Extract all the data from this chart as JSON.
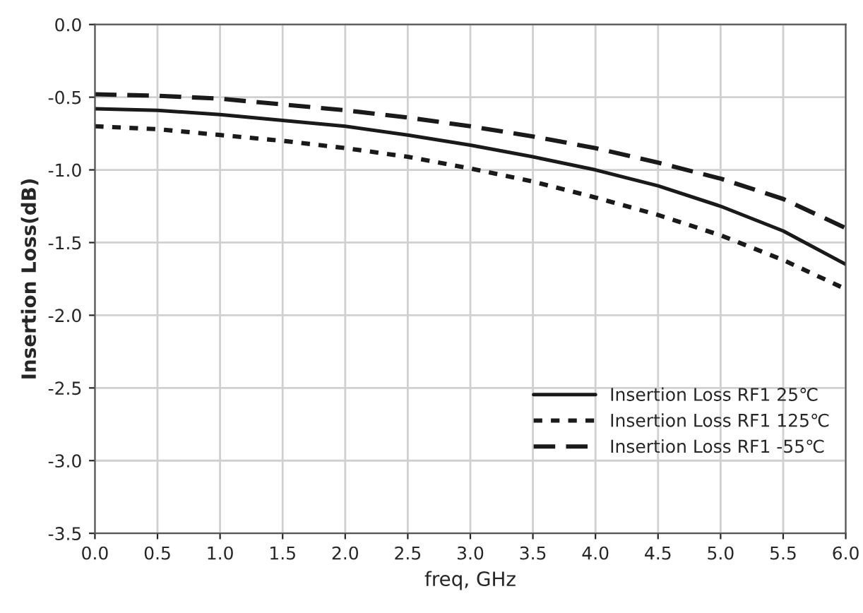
{
  "chart_data": {
    "type": "line",
    "xlabel": "freq, GHz",
    "ylabel": "Insertion Loss(dB)",
    "x": [
      0,
      0.5,
      1.0,
      1.5,
      2.0,
      2.5,
      3.0,
      3.5,
      4.0,
      4.5,
      5.0,
      5.5,
      6.0
    ],
    "series": [
      {
        "name": "Insertion Loss RF1 25℃",
        "color": "#1a1a1a",
        "line_style": "solid",
        "values": [
          -0.58,
          -0.59,
          -0.62,
          -0.66,
          -0.7,
          -0.76,
          -0.83,
          -0.91,
          -1.0,
          -1.11,
          -1.25,
          -1.42,
          -1.65
        ]
      },
      {
        "name": "Insertion Loss RF1 125℃",
        "color": "#1a1a1a",
        "line_style": "dotted",
        "values": [
          -0.7,
          -0.72,
          -0.76,
          -0.8,
          -0.85,
          -0.91,
          -0.99,
          -1.08,
          -1.19,
          -1.31,
          -1.45,
          -1.62,
          -1.82
        ]
      },
      {
        "name": "Insertion Loss RF1 -55℃",
        "color": "#1a1a1a",
        "line_style": "dashed",
        "values": [
          -0.48,
          -0.49,
          -0.51,
          -0.55,
          -0.59,
          -0.64,
          -0.7,
          -0.77,
          -0.85,
          -0.95,
          -1.06,
          -1.2,
          -1.4
        ]
      }
    ],
    "xlim": [
      0,
      6
    ],
    "xticks": [
      {
        "value": 0,
        "label": "0.0"
      },
      0.5,
      {
        "value": 1,
        "label": "1.0"
      },
      1.5,
      {
        "value": 2,
        "label": "2.0"
      },
      2.5,
      {
        "value": 3,
        "label": "3.0"
      },
      3.5,
      {
        "value": 4,
        "label": "4.0"
      },
      4.5,
      {
        "value": 5,
        "label": "5.0"
      },
      5.5,
      {
        "value": 6,
        "label": "6.0"
      }
    ],
    "ylim": [
      -3.5,
      0
    ],
    "yticks": [
      {
        "value": -3.5,
        "label": "-3.5"
      },
      {
        "value": -3,
        "label": "-3.0"
      },
      {
        "value": -2.5,
        "label": "-2.5"
      },
      {
        "value": -2,
        "label": "-2.0"
      },
      {
        "value": -1.5,
        "label": "-1.5"
      },
      {
        "value": -1,
        "label": "-1.0"
      },
      {
        "value": -0.5,
        "label": "-0.5"
      },
      {
        "value": 0,
        "label": "0.0"
      }
    ],
    "grid": true,
    "legend": "lower right"
  }
}
